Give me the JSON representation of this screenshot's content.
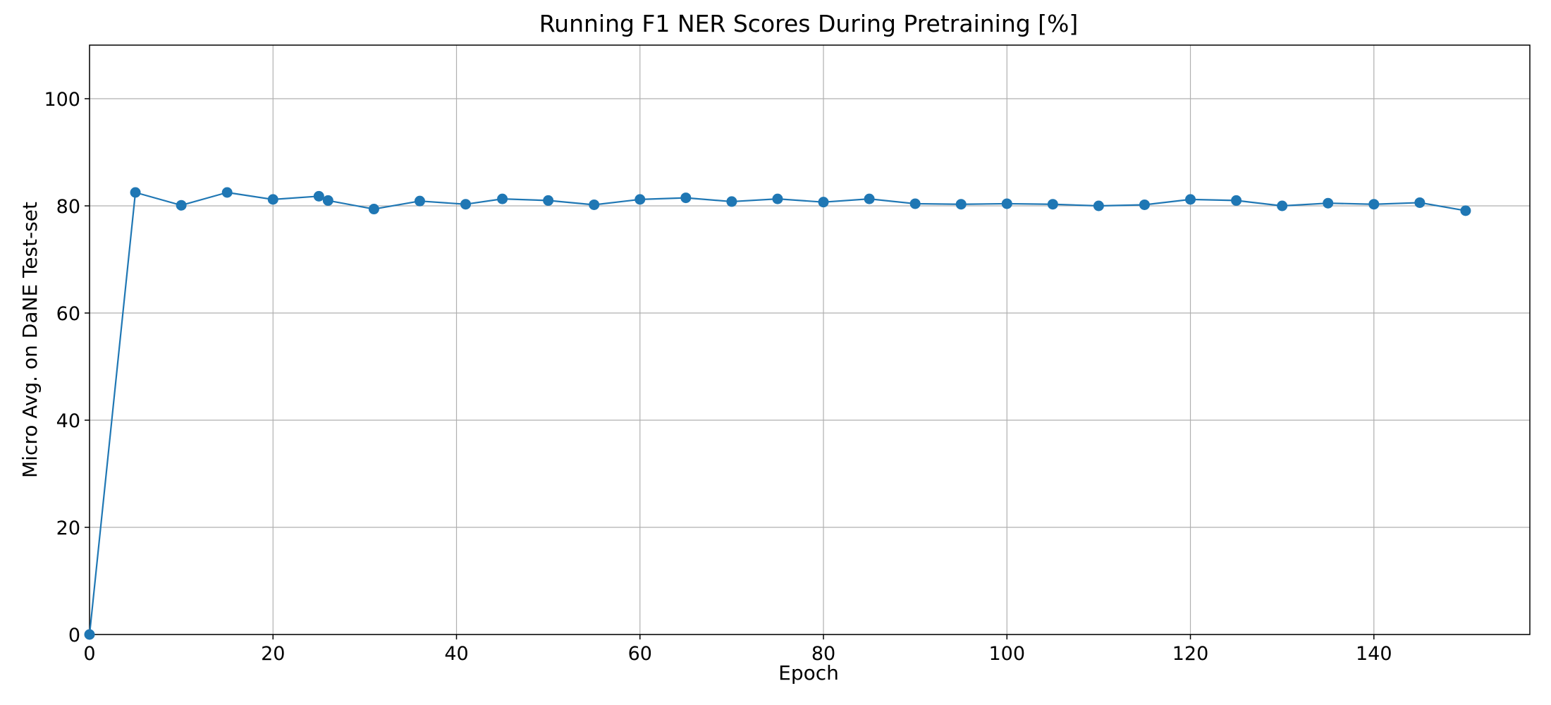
{
  "chart_data": {
    "type": "line",
    "title": "Running F1 NER Scores During Pretraining [%]",
    "xlabel": "Epoch",
    "ylabel": "Micro Avg. on DaNE Test-set",
    "xlim": [
      0,
      157
    ],
    "ylim": [
      0,
      110
    ],
    "xticks": [
      0,
      20,
      40,
      60,
      80,
      100,
      120,
      140
    ],
    "yticks": [
      0,
      20,
      40,
      60,
      80,
      100
    ],
    "grid": true,
    "line_color": "#1f77b4",
    "marker": "circle",
    "series": [
      {
        "x": [
          0,
          5,
          10,
          15,
          20,
          25,
          26,
          31,
          36,
          41,
          45,
          50,
          55,
          60,
          65,
          70,
          75,
          80,
          85,
          90,
          95,
          100,
          105,
          110,
          115,
          120,
          125,
          130,
          135,
          140,
          145,
          150
        ],
        "y": [
          0,
          82.5,
          80.1,
          82.5,
          81.2,
          81.8,
          81.0,
          79.4,
          80.9,
          80.3,
          81.3,
          81.0,
          80.2,
          81.2,
          81.5,
          80.8,
          81.3,
          80.7,
          81.3,
          80.4,
          80.3,
          80.4,
          80.3,
          80.0,
          80.2,
          81.2,
          81.0,
          80.0,
          80.5,
          80.3,
          80.6,
          79.1
        ]
      }
    ]
  }
}
